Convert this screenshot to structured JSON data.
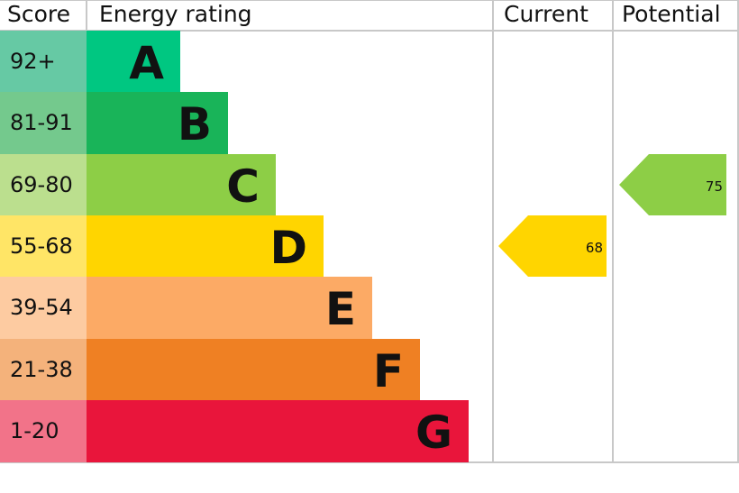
{
  "chart_data": {
    "type": "table",
    "headers": {
      "score": "Score",
      "rating": "Energy rating",
      "current": "Current",
      "potential": "Potential"
    },
    "bands": [
      {
        "letter": "A",
        "range": "92+",
        "color": "#00c781",
        "light": "#66c9a4"
      },
      {
        "letter": "B",
        "range": "81-91",
        "color": "#19b459",
        "light": "#74c98d"
      },
      {
        "letter": "C",
        "range": "69-80",
        "color": "#8dce46",
        "light": "#bbdf8e"
      },
      {
        "letter": "D",
        "range": "55-68",
        "color": "#ffd500",
        "light": "#ffe566"
      },
      {
        "letter": "E",
        "range": "39-54",
        "color": "#fcaa65",
        "light": "#fdcba1"
      },
      {
        "letter": "F",
        "range": "21-38",
        "color": "#ef8023",
        "light": "#f4b27b"
      },
      {
        "letter": "G",
        "range": "1-20",
        "color": "#e9153b",
        "light": "#f27389"
      }
    ],
    "current": {
      "value": "68",
      "band": "D"
    },
    "potential": {
      "value": "75",
      "band": "C"
    }
  }
}
